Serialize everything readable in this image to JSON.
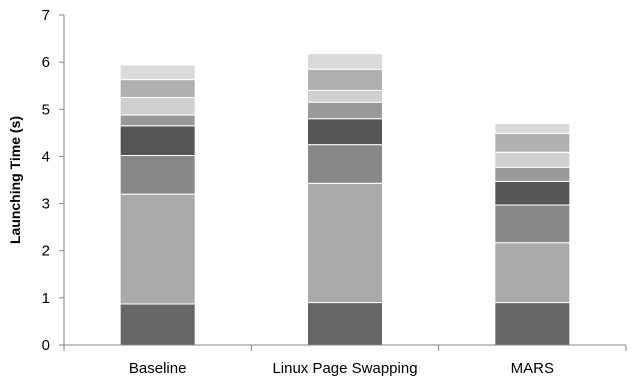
{
  "chart_data": {
    "type": "bar",
    "stacked": true,
    "title": "",
    "xlabel": "",
    "ylabel": "Launching Time (s)",
    "ylim": [
      0,
      7
    ],
    "yticks": [
      "0",
      "1",
      "2",
      "3",
      "4",
      "5",
      "6",
      "7"
    ],
    "grid": false,
    "legend": "none",
    "categories": [
      "Baseline",
      "Linux Page Swapping",
      "MARS"
    ],
    "segment_colors": [
      "#666666",
      "#aaaaaa",
      "#888888",
      "#555555",
      "#999999",
      "#d0d0d0",
      "#b0b0b0",
      "#dadada"
    ],
    "series": [
      {
        "values": [
          0.87,
          0.9,
          0.9
        ]
      },
      {
        "values": [
          2.33,
          2.53,
          1.27
        ]
      },
      {
        "values": [
          0.82,
          0.82,
          0.8
        ]
      },
      {
        "values": [
          0.63,
          0.55,
          0.5
        ]
      },
      {
        "values": [
          0.23,
          0.35,
          0.3
        ]
      },
      {
        "values": [
          0.37,
          0.25,
          0.32
        ]
      },
      {
        "values": [
          0.38,
          0.45,
          0.4
        ]
      },
      {
        "values": [
          0.31,
          0.33,
          0.21
        ]
      }
    ]
  }
}
